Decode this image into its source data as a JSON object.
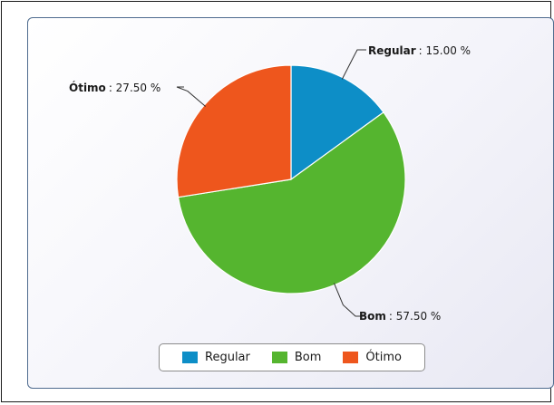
{
  "chart_data": {
    "type": "pie",
    "categories": [
      "Regular",
      "Bom",
      "Ótimo"
    ],
    "values": [
      15.0,
      57.5,
      27.5
    ],
    "unit": "%",
    "slice_labels": [
      {
        "name": "Regular",
        "value_text": ": 15.00 %"
      },
      {
        "name": "Bom",
        "value_text": ": 57.50 %"
      },
      {
        "name": "Ótimo",
        "value_text": ": 27.50 %"
      }
    ],
    "colors": [
      "#0d8ec7",
      "#55b52f",
      "#ee561d"
    ],
    "legend": {
      "placement": "bottom",
      "items": [
        {
          "label": "Regular",
          "color": "#0d8ec7"
        },
        {
          "label": "Bom",
          "color": "#55b52f"
        },
        {
          "label": "Ótimo",
          "color": "#ee561d"
        }
      ]
    }
  }
}
